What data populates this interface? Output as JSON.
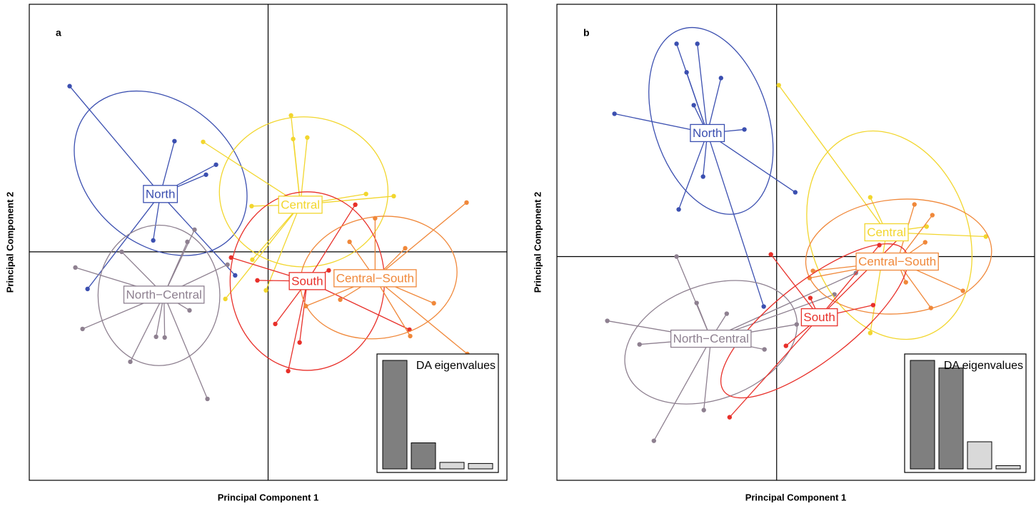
{
  "chart_data": [
    {
      "type": "scatter",
      "label": "a",
      "xlabel": "Principal Component 1",
      "ylabel": "Principal Component 2",
      "xlim": [
        -10,
        10
      ],
      "ylim": [
        -9.6,
        10.4
      ],
      "series": [
        {
          "name": "North",
          "color": "#3b4fb0",
          "centroid": {
            "x": -4.51,
            "y": 2.43
          },
          "x": [
            -8.31,
            -3.92,
            -2.6,
            -2.18,
            -4.81,
            -7.56,
            -1.38
          ],
          "y": [
            6.96,
            4.65,
            3.24,
            3.66,
            0.48,
            -1.56,
            -0.99
          ],
          "ellipse": {
            "cx": -4.5,
            "cy": 3.3,
            "rx": 4.0,
            "ry": 3.0,
            "angle": -40
          }
        },
        {
          "name": "North−Central",
          "color": "#8e8090",
          "centroid": {
            "x": -4.36,
            "y": -1.8
          },
          "x": [
            -8.07,
            -7.77,
            -5.77,
            -2.54,
            -3.29,
            -3.08,
            -3.38,
            -6.13,
            -4.69,
            -4.33,
            -1.7
          ],
          "y": [
            -0.66,
            -3.24,
            -4.62,
            -6.18,
            -2.46,
            0.93,
            0.42,
            0,
            -3.57,
            -3.6,
            -0.54
          ],
          "ellipse": {
            "cx": -4.57,
            "cy": -1.83,
            "rx": 2.55,
            "ry": 2.95,
            "angle": 0
          }
        },
        {
          "name": "Central",
          "color": "#f2d62e",
          "centroid": {
            "x": 1.35,
            "y": 1.98
          },
          "x": [
            0.96,
            1.64,
            -2.72,
            4.1,
            5.26,
            -1.79,
            -0.66,
            -0.09,
            1.05,
            -0.69
          ],
          "y": [
            5.73,
            4.8,
            4.62,
            2.43,
            2.34,
            -1.98,
            -0.33,
            -1.62,
            4.74,
            1.92
          ],
          "ellipse": {
            "cx": 1.49,
            "cy": 2.52,
            "rx": 3.53,
            "ry": 3.15,
            "angle": 0
          }
        },
        {
          "name": "South",
          "color": "#e8302a",
          "centroid": {
            "x": 1.64,
            "y": -1.23
          },
          "x": [
            0.84,
            1.32,
            -0.45,
            -1.55,
            3.65,
            5.92,
            0.3,
            2.54
          ],
          "y": [
            -5.01,
            -3.81,
            -1.2,
            -0.24,
            1.98,
            -3.27,
            -3.03,
            -0.78
          ],
          "ellipse": {
            "cx": 1.64,
            "cy": -1.23,
            "rx": 3.23,
            "ry": 3.75,
            "angle": 0
          }
        },
        {
          "name": "Central−South",
          "color": "#f0883a",
          "centroid": {
            "x": 4.48,
            "y": -1.11
          },
          "x": [
            8.31,
            8.34,
            5.74,
            6.94,
            4.48,
            3.41,
            5.95,
            3.02,
            1.58
          ],
          "y": [
            2.07,
            -4.29,
            0.15,
            -2.16,
            1.41,
            0.42,
            -3.54,
            -2.01,
            -2.28
          ],
          "ellipse": {
            "cx": 4.63,
            "cy": -1.08,
            "rx": 3.3,
            "ry": 2.55,
            "angle": 10
          }
        }
      ],
      "inset": {
        "title": "DA eigenvalues",
        "values": [
          100,
          24,
          6,
          5
        ],
        "colors": [
          "#7f7f7f",
          "#7f7f7f",
          "#d9d9d9",
          "#d9d9d9"
        ]
      }
    },
    {
      "type": "scatter",
      "label": "b",
      "xlabel": "Principal Component 1",
      "ylabel": "Principal Component 2",
      "xlim": [
        -9.2,
        10.8
      ],
      "ylim": [
        -9.4,
        10.6
      ],
      "series": [
        {
          "name": "North",
          "color": "#3b4fb0",
          "centroid": {
            "x": -2.9,
            "y": 5.19
          },
          "x": [
            -6.79,
            -4.19,
            -3.77,
            -3.32,
            -2.33,
            -1.35,
            0.78,
            -4.1,
            -3.08,
            -0.54,
            -3.47
          ],
          "y": [
            6.0,
            8.94,
            7.74,
            8.94,
            7.5,
            5.34,
            2.7,
            1.98,
            3.36,
            -2.1,
            6.36
          ],
          "ellipse": {
            "cx": -2.75,
            "cy": 5.7,
            "rx": 2.4,
            "ry": 4.05,
            "angle": 18
          }
        },
        {
          "name": "North−Central",
          "color": "#8e8090",
          "centroid": {
            "x": -2.75,
            "y": -3.45
          },
          "x": [
            -7.09,
            -5.74,
            -5.14,
            -3.05,
            -0.51,
            0.84,
            2.42,
            3.32,
            -4.19,
            -3.35,
            -2.09
          ],
          "y": [
            -2.7,
            -3.69,
            -7.74,
            -6.45,
            -3.9,
            -2.85,
            -1.59,
            -0.69,
            0,
            -1.95,
            -2.4
          ],
          "ellipse": {
            "cx": -2.75,
            "cy": -3.6,
            "rx": 3.74,
            "ry": 2.4,
            "angle": 20
          }
        },
        {
          "name": "Central",
          "color": "#f2d62e",
          "centroid": {
            "x": 4.6,
            "y": 1.02
          },
          "x": [
            0.09,
            3.92,
            8.76,
            3.92,
            6.28
          ],
          "y": [
            7.2,
            2.49,
            0.84,
            -3.21,
            1.26
          ],
          "ellipse": {
            "cx": 4.72,
            "cy": 0.9,
            "rx": 3.3,
            "ry": 4.5,
            "angle": 20
          }
        },
        {
          "name": "Central−South",
          "color": "#f0883a",
          "centroid": {
            "x": 5.05,
            "y": -0.21
          },
          "x": [
            5.77,
            6.52,
            7.8,
            6.46,
            1.52,
            1.38,
            5.41,
            6.22
          ],
          "y": [
            2.19,
            1.74,
            -1.44,
            -2.16,
            -0.6,
            -0.9,
            -1.08,
            0.6
          ],
          "ellipse": {
            "cx": 5.11,
            "cy": 0,
            "rx": 3.9,
            "ry": 2.4,
            "angle": 5
          }
        },
        {
          "name": "South",
          "color": "#e8302a",
          "centroid": {
            "x": 1.79,
            "y": -2.55
          },
          "x": [
            -1.97,
            -0.24,
            1.41,
            4.04,
            4.3,
            0.39,
            5.32
          ],
          "y": [
            -6.75,
            0.09,
            -1.74,
            -2.04,
            0.48,
            -3.75,
            0.96
          ],
          "ellipse": {
            "cx": 1.58,
            "cy": -2.7,
            "rx": 4.8,
            "ry": 1.65,
            "angle": 38
          }
        }
      ],
      "inset": {
        "title": "DA eigenvalues",
        "values": [
          100,
          93,
          25,
          3
        ],
        "colors": [
          "#7f7f7f",
          "#7f7f7f",
          "#d9d9d9",
          "#d9d9d9"
        ]
      }
    }
  ]
}
